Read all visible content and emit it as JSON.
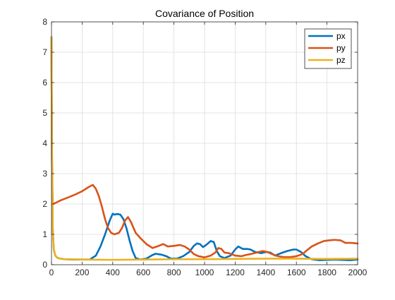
{
  "chart_data": {
    "type": "line",
    "title": "Covariance of Position",
    "xlabel": "",
    "ylabel": "",
    "xlim": [
      0,
      2000
    ],
    "ylim": [
      0,
      8
    ],
    "x_ticks": [
      0,
      200,
      400,
      600,
      800,
      1000,
      1200,
      1400,
      1600,
      1800,
      2000
    ],
    "y_ticks": [
      0,
      1,
      2,
      3,
      4,
      5,
      6,
      7,
      8
    ],
    "grid": true,
    "legend_position": "top-right",
    "series": [
      {
        "name": "px",
        "color": "#0072BD",
        "points": [
          [
            0,
            7.5
          ],
          [
            3,
            3.5
          ],
          [
            8,
            1.2
          ],
          [
            15,
            0.5
          ],
          [
            25,
            0.3
          ],
          [
            40,
            0.22
          ],
          [
            80,
            0.18
          ],
          [
            150,
            0.17
          ],
          [
            250,
            0.17
          ],
          [
            290,
            0.3
          ],
          [
            320,
            0.6
          ],
          [
            350,
            1.0
          ],
          [
            380,
            1.45
          ],
          [
            400,
            1.68
          ],
          [
            410,
            1.65
          ],
          [
            430,
            1.67
          ],
          [
            450,
            1.65
          ],
          [
            470,
            1.5
          ],
          [
            490,
            1.2
          ],
          [
            510,
            0.8
          ],
          [
            530,
            0.45
          ],
          [
            550,
            0.22
          ],
          [
            580,
            0.17
          ],
          [
            620,
            0.2
          ],
          [
            660,
            0.32
          ],
          [
            680,
            0.36
          ],
          [
            720,
            0.33
          ],
          [
            750,
            0.28
          ],
          [
            780,
            0.2
          ],
          [
            820,
            0.2
          ],
          [
            860,
            0.28
          ],
          [
            900,
            0.42
          ],
          [
            930,
            0.62
          ],
          [
            950,
            0.7
          ],
          [
            970,
            0.68
          ],
          [
            990,
            0.58
          ],
          [
            1010,
            0.65
          ],
          [
            1040,
            0.78
          ],
          [
            1060,
            0.75
          ],
          [
            1080,
            0.45
          ],
          [
            1100,
            0.28
          ],
          [
            1130,
            0.22
          ],
          [
            1170,
            0.3
          ],
          [
            1200,
            0.5
          ],
          [
            1220,
            0.6
          ],
          [
            1250,
            0.52
          ],
          [
            1280,
            0.52
          ],
          [
            1300,
            0.5
          ],
          [
            1330,
            0.42
          ],
          [
            1370,
            0.38
          ],
          [
            1400,
            0.42
          ],
          [
            1430,
            0.4
          ],
          [
            1460,
            0.3
          ],
          [
            1500,
            0.38
          ],
          [
            1540,
            0.45
          ],
          [
            1580,
            0.5
          ],
          [
            1600,
            0.5
          ],
          [
            1630,
            0.42
          ],
          [
            1660,
            0.28
          ],
          [
            1700,
            0.18
          ],
          [
            1750,
            0.15
          ],
          [
            1850,
            0.17
          ],
          [
            1950,
            0.15
          ],
          [
            2000,
            0.17
          ]
        ]
      },
      {
        "name": "py",
        "color": "#D95319",
        "points": [
          [
            0,
            7.3
          ],
          [
            2,
            4.5
          ],
          [
            5,
            2.8
          ],
          [
            8,
            2.0
          ],
          [
            20,
            2.02
          ],
          [
            60,
            2.12
          ],
          [
            100,
            2.2
          ],
          [
            150,
            2.3
          ],
          [
            200,
            2.42
          ],
          [
            240,
            2.55
          ],
          [
            270,
            2.63
          ],
          [
            290,
            2.5
          ],
          [
            310,
            2.25
          ],
          [
            330,
            1.9
          ],
          [
            350,
            1.5
          ],
          [
            370,
            1.2
          ],
          [
            390,
            1.05
          ],
          [
            410,
            1.0
          ],
          [
            440,
            1.05
          ],
          [
            460,
            1.2
          ],
          [
            480,
            1.45
          ],
          [
            500,
            1.57
          ],
          [
            520,
            1.4
          ],
          [
            550,
            1.05
          ],
          [
            580,
            0.88
          ],
          [
            620,
            0.68
          ],
          [
            660,
            0.55
          ],
          [
            700,
            0.62
          ],
          [
            730,
            0.68
          ],
          [
            760,
            0.6
          ],
          [
            800,
            0.62
          ],
          [
            840,
            0.65
          ],
          [
            870,
            0.6
          ],
          [
            900,
            0.5
          ],
          [
            930,
            0.35
          ],
          [
            960,
            0.28
          ],
          [
            1000,
            0.24
          ],
          [
            1040,
            0.3
          ],
          [
            1070,
            0.4
          ],
          [
            1090,
            0.55
          ],
          [
            1110,
            0.52
          ],
          [
            1130,
            0.4
          ],
          [
            1160,
            0.38
          ],
          [
            1200,
            0.3
          ],
          [
            1240,
            0.28
          ],
          [
            1270,
            0.32
          ],
          [
            1300,
            0.35
          ],
          [
            1340,
            0.4
          ],
          [
            1380,
            0.45
          ],
          [
            1410,
            0.42
          ],
          [
            1440,
            0.35
          ],
          [
            1480,
            0.28
          ],
          [
            1520,
            0.25
          ],
          [
            1560,
            0.25
          ],
          [
            1600,
            0.28
          ],
          [
            1640,
            0.35
          ],
          [
            1670,
            0.48
          ],
          [
            1700,
            0.6
          ],
          [
            1740,
            0.7
          ],
          [
            1780,
            0.78
          ],
          [
            1810,
            0.8
          ],
          [
            1850,
            0.82
          ],
          [
            1890,
            0.8
          ],
          [
            1920,
            0.72
          ],
          [
            1960,
            0.72
          ],
          [
            2000,
            0.7
          ]
        ]
      },
      {
        "name": "pz",
        "color": "#EDB120",
        "points": [
          [
            0,
            7.5
          ],
          [
            3,
            3.5
          ],
          [
            8,
            1.2
          ],
          [
            15,
            0.5
          ],
          [
            25,
            0.3
          ],
          [
            40,
            0.22
          ],
          [
            80,
            0.18
          ],
          [
            200,
            0.17
          ],
          [
            400,
            0.16
          ],
          [
            600,
            0.17
          ],
          [
            800,
            0.18
          ],
          [
            1000,
            0.18
          ],
          [
            1200,
            0.19
          ],
          [
            1400,
            0.2
          ],
          [
            1600,
            0.2
          ],
          [
            1800,
            0.19
          ],
          [
            2000,
            0.2
          ]
        ]
      }
    ]
  }
}
